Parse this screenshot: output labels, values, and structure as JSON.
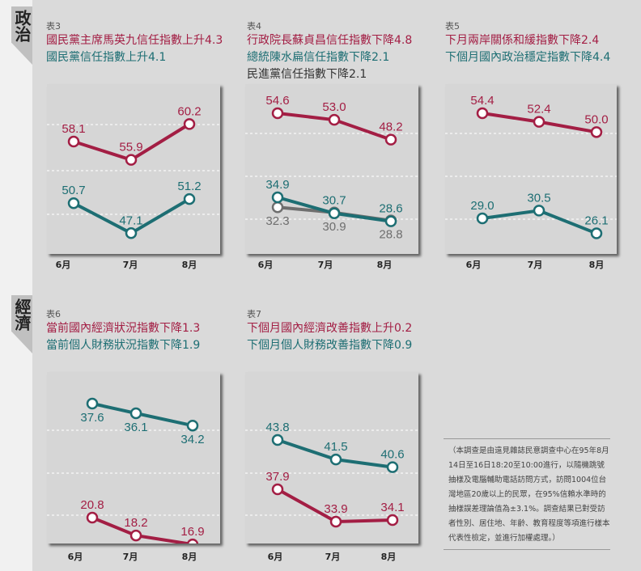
{
  "sections": {
    "politics": {
      "label": "政治"
    },
    "economy": {
      "label": "經濟"
    }
  },
  "charts": [
    {
      "id": "t3",
      "table": "表3",
      "titles": [
        {
          "text": "國民黨主席馬英九信任指數上升4.3",
          "color": "red"
        },
        {
          "text": "國民黨信任指數上升4.1",
          "color": "teal"
        }
      ]
    },
    {
      "id": "t4",
      "table": "表4",
      "titles": [
        {
          "text": "行政院長蘇貞昌信任指數下降4.8",
          "color": "red"
        },
        {
          "text": "總統陳水扁信任指數下降2.1",
          "color": "teal"
        },
        {
          "text": "民進黨信任指數下降2.1",
          "color": "gray"
        }
      ]
    },
    {
      "id": "t5",
      "table": "表5",
      "titles": [
        {
          "text": "下月兩岸關係和緩指數下降2.4",
          "color": "red"
        },
        {
          "text": "下個月國內政治穩定指數下降4.4",
          "color": "teal"
        }
      ]
    },
    {
      "id": "t6",
      "table": "表6",
      "titles": [
        {
          "text": "當前國內經濟狀況指數下降1.3",
          "color": "red"
        },
        {
          "text": "當前個人財務狀況指數下降1.9",
          "color": "teal"
        }
      ]
    },
    {
      "id": "t7",
      "table": "表7",
      "titles": [
        {
          "text": "下個月國內經濟改善指數上升0.2",
          "color": "red"
        },
        {
          "text": "下個月個人財務改善指數下降0.9",
          "color": "teal"
        }
      ]
    }
  ],
  "xlabels": [
    "6月",
    "7月",
    "8月"
  ],
  "note": "（本調查是由遠見雜誌民意調查中心在95年8月14日至16日18:20至10:00進行，以隨機跳號抽樣及電腦輔助電話訪問方式，訪問1004位台灣地區20歲以上的民眾，在95%信賴水準時的抽樣誤差理論值為±3.1%。調查結果已對受訪者性別、居住地、年齡、教育程度等項進行樣本代表性檢定，並進行加權處理。）",
  "colors": {
    "red": "#a31e44",
    "teal": "#1d6e73",
    "gray": "#6e6e6e"
  },
  "chart_data": [
    {
      "type": "line",
      "title": "表3 國民黨主席馬英九信任指數上升4.3 / 國民黨信任指數上升4.1",
      "categories": [
        "6月",
        "7月",
        "8月"
      ],
      "series": [
        {
          "name": "國民黨主席馬英九信任指數",
          "color": "#a31e44",
          "values": [
            58.1,
            55.9,
            60.2
          ]
        },
        {
          "name": "國民黨信任指數",
          "color": "#1d6e73",
          "values": [
            50.7,
            47.1,
            51.2
          ]
        }
      ],
      "grid": "dashed horizontal",
      "legend": "none (titles above chart)"
    },
    {
      "type": "line",
      "title": "表4 行政院長蘇貞昌信任指數下降4.8 / 總統陳水扁信任指數下降2.1 / 民進黨信任指數下降2.1",
      "categories": [
        "6月",
        "7月",
        "8月"
      ],
      "series": [
        {
          "name": "行政院長蘇貞昌信任指數",
          "color": "#a31e44",
          "values": [
            54.6,
            53.0,
            48.2
          ]
        },
        {
          "name": "總統陳水扁信任指數",
          "color": "#1d6e73",
          "values": [
            34.9,
            30.7,
            28.6
          ]
        },
        {
          "name": "民進黨信任指數",
          "color": "#6e6e6e",
          "values": [
            32.3,
            30.9,
            28.8
          ]
        }
      ],
      "grid": "dashed horizontal",
      "legend": "none (titles above chart)"
    },
    {
      "type": "line",
      "title": "表5 下月兩岸關係和緩指數下降2.4 / 下個月國內政治穩定指數下降4.4",
      "categories": [
        "6月",
        "7月",
        "8月"
      ],
      "series": [
        {
          "name": "下月兩岸關係和緩指數",
          "color": "#a31e44",
          "values": [
            54.4,
            52.4,
            50.0
          ]
        },
        {
          "name": "下個月國內政治穩定指數",
          "color": "#1d6e73",
          "values": [
            29.0,
            30.5,
            26.1
          ]
        }
      ],
      "grid": "dashed horizontal",
      "legend": "none (titles above chart)"
    },
    {
      "type": "line",
      "title": "表6 當前國內經濟狀況指數下降1.3 / 當前個人財務狀況指數下降1.9",
      "categories": [
        "6月",
        "7月",
        "8月"
      ],
      "series": [
        {
          "name": "當前國內經濟狀況指數",
          "color": "#a31e44",
          "values": [
            20.8,
            18.2,
            16.9
          ]
        },
        {
          "name": "當前個人財務狀況指數",
          "color": "#1d6e73",
          "values": [
            37.6,
            36.1,
            34.2
          ]
        }
      ],
      "grid": "dashed horizontal",
      "legend": "none (titles above chart)"
    },
    {
      "type": "line",
      "title": "表7 下個月國內經濟改善指數上升0.2 / 下個月個人財務改善指數下降0.9",
      "categories": [
        "6月",
        "7月",
        "8月"
      ],
      "series": [
        {
          "name": "下個月國內經濟改善指數",
          "color": "#a31e44",
          "values": [
            37.9,
            33.9,
            34.1
          ]
        },
        {
          "name": "下個月個人財務改善指數",
          "color": "#1d6e73",
          "values": [
            43.8,
            41.5,
            40.6
          ]
        }
      ],
      "grid": "dashed horizontal",
      "legend": "none (titles above chart)"
    }
  ]
}
